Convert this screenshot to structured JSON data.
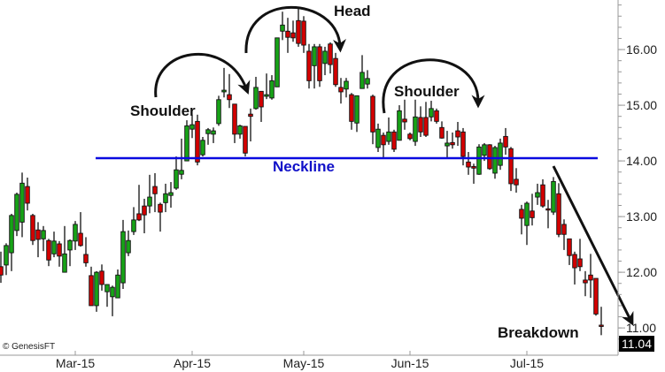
{
  "chart_data": {
    "type": "candlestick",
    "title": "",
    "xlabel": "",
    "ylabel": "",
    "ylim": [
      10.51,
      16.89
    ],
    "y_ticks": [
      "11.00",
      "12.00",
      "13.00",
      "14.00",
      "15.00",
      "16.00"
    ],
    "y_minor_step": 0.2,
    "x_ticks": [
      {
        "label": "Mar-15",
        "date": "2015-03-02"
      },
      {
        "label": "Apr-15",
        "date": "2015-04-01"
      },
      {
        "label": "May-15",
        "date": "2015-05-01"
      },
      {
        "label": "Jun-15",
        "date": "2015-06-01"
      },
      {
        "label": "Jul-15",
        "date": "2015-07-01"
      }
    ],
    "grid": false,
    "colors": {
      "up": "#17a317",
      "down": "#d40000",
      "neckline": "#0a0ae0",
      "wick": "#111111"
    },
    "neckline": {
      "label": "Neckline",
      "value": 14.05
    },
    "last_price": {
      "label": "11.04",
      "value": 11.04
    },
    "annotations": {
      "left_shoulder": "Shoulder",
      "head": "Head",
      "right_shoulder": "Shoulder",
      "breakdown": "Breakdown"
    },
    "watermark": "© GenesisFT",
    "candles_format": [
      "date",
      "open",
      "high",
      "low",
      "close"
    ],
    "candles": [
      [
        "2015-02-09",
        12.1,
        12.37,
        11.81,
        11.95
      ],
      [
        "2015-02-10",
        12.13,
        12.52,
        11.95,
        12.48
      ],
      [
        "2015-02-11",
        12.35,
        13.05,
        12.02,
        13.02
      ],
      [
        "2015-02-12",
        12.75,
        13.43,
        12.65,
        13.4
      ],
      [
        "2015-02-13",
        12.9,
        13.79,
        12.63,
        13.6
      ],
      [
        "2015-02-17",
        13.54,
        13.7,
        13.11,
        13.24
      ],
      [
        "2015-02-18",
        13.02,
        13.05,
        12.49,
        12.57
      ],
      [
        "2015-02-19",
        12.76,
        12.9,
        12.27,
        12.59
      ],
      [
        "2015-02-20",
        12.6,
        12.83,
        12.38,
        12.75
      ],
      [
        "2015-02-23",
        12.57,
        12.6,
        12.11,
        12.22
      ],
      [
        "2015-02-24",
        12.33,
        12.73,
        12.27,
        12.56
      ],
      [
        "2015-02-25",
        12.51,
        12.56,
        12.1,
        12.29
      ],
      [
        "2015-02-26",
        12.0,
        12.83,
        12.0,
        12.33
      ],
      [
        "2015-02-27",
        12.4,
        12.59,
        12.11,
        12.57
      ],
      [
        "2015-03-02",
        12.56,
        12.92,
        12.4,
        12.86
      ],
      [
        "2015-03-03",
        12.7,
        13.08,
        12.46,
        12.48
      ],
      [
        "2015-03-04",
        12.32,
        12.63,
        12.1,
        12.17
      ],
      [
        "2015-03-05",
        11.94,
        12.1,
        11.4,
        11.4
      ],
      [
        "2015-03-06",
        11.4,
        12.02,
        11.29,
        12.0
      ],
      [
        "2015-03-09",
        12.02,
        12.14,
        11.67,
        11.78
      ],
      [
        "2015-03-10",
        11.65,
        11.78,
        11.38,
        11.78
      ],
      [
        "2015-03-11",
        11.56,
        11.76,
        11.21,
        11.73
      ],
      [
        "2015-03-12",
        11.54,
        12.05,
        11.54,
        11.95
      ],
      [
        "2015-03-13",
        11.81,
        12.94,
        11.7,
        12.73
      ],
      [
        "2015-03-16",
        12.35,
        12.75,
        12.29,
        12.57
      ],
      [
        "2015-03-17",
        12.73,
        13.17,
        12.67,
        12.94
      ],
      [
        "2015-03-18",
        13.05,
        13.57,
        12.92,
        12.94
      ],
      [
        "2015-03-19",
        13.19,
        13.32,
        12.7,
        13.03
      ],
      [
        "2015-03-20",
        13.19,
        13.75,
        13.06,
        13.35
      ],
      [
        "2015-03-23",
        13.54,
        13.78,
        13.08,
        13.41
      ],
      [
        "2015-03-24",
        13.22,
        13.25,
        12.73,
        13.08
      ],
      [
        "2015-03-25",
        13.25,
        13.59,
        13.08,
        13.41
      ],
      [
        "2015-03-26",
        13.38,
        13.62,
        13.16,
        13.43
      ],
      [
        "2015-03-27",
        13.51,
        14.08,
        13.48,
        13.84
      ],
      [
        "2015-03-30",
        13.76,
        14.4,
        13.67,
        13.83
      ],
      [
        "2015-03-31",
        14.0,
        14.73,
        14.0,
        14.63
      ],
      [
        "2015-04-01",
        14.57,
        14.83,
        14.41,
        14.65
      ],
      [
        "2015-04-02",
        14.71,
        14.83,
        13.92,
        13.98
      ],
      [
        "2015-04-06",
        14.11,
        14.43,
        14.08,
        14.37
      ],
      [
        "2015-04-07",
        14.49,
        14.59,
        14.29,
        14.56
      ],
      [
        "2015-04-08",
        14.48,
        14.6,
        14.32,
        14.54
      ],
      [
        "2015-04-09",
        14.67,
        15.17,
        14.63,
        15.1
      ],
      [
        "2015-04-10",
        15.24,
        15.67,
        15.14,
        15.27
      ],
      [
        "2015-04-13",
        15.19,
        15.56,
        14.95,
        15.1
      ],
      [
        "2015-04-14",
        15.02,
        15.02,
        14.32,
        14.48
      ],
      [
        "2015-04-15",
        14.48,
        14.65,
        14.4,
        14.63
      ],
      [
        "2015-04-16",
        14.62,
        14.62,
        14.08,
        14.14
      ],
      [
        "2015-04-17",
        14.84,
        14.94,
        14.35,
        14.8
      ],
      [
        "2015-04-20",
        14.94,
        15.51,
        14.92,
        15.32
      ],
      [
        "2015-04-21",
        15.25,
        15.25,
        14.7,
        14.97
      ],
      [
        "2015-04-22",
        15.16,
        15.57,
        15.11,
        15.19
      ],
      [
        "2015-04-23",
        15.13,
        15.54,
        15.1,
        15.44
      ],
      [
        "2015-04-24",
        15.33,
        16.21,
        15.33,
        16.21
      ],
      [
        "2015-04-27",
        16.33,
        16.68,
        16.17,
        16.44
      ],
      [
        "2015-04-28",
        16.33,
        16.57,
        15.94,
        16.22
      ],
      [
        "2015-04-29",
        16.3,
        16.52,
        16.14,
        16.21
      ],
      [
        "2015-04-30",
        16.52,
        16.73,
        16.05,
        16.11
      ],
      [
        "2015-05-01",
        16.51,
        16.6,
        15.94,
        16.08
      ],
      [
        "2015-05-04",
        15.97,
        16.1,
        15.3,
        15.44
      ],
      [
        "2015-05-05",
        15.71,
        16.1,
        15.3,
        16.05
      ],
      [
        "2015-05-06",
        16.05,
        16.1,
        15.33,
        15.44
      ],
      [
        "2015-05-07",
        15.75,
        16.05,
        15.54,
        15.97
      ],
      [
        "2015-05-08",
        16.1,
        16.13,
        15.57,
        15.73
      ],
      [
        "2015-05-11",
        15.84,
        15.94,
        15.33,
        15.37
      ],
      [
        "2015-05-12",
        15.32,
        15.49,
        15.03,
        15.24
      ],
      [
        "2015-05-13",
        15.29,
        15.49,
        15.14,
        15.43
      ],
      [
        "2015-05-14",
        15.19,
        15.22,
        14.56,
        14.71
      ],
      [
        "2015-05-15",
        14.68,
        15.17,
        14.52,
        15.17
      ],
      [
        "2015-05-18",
        15.3,
        15.9,
        15.3,
        15.59
      ],
      [
        "2015-05-19",
        15.38,
        15.63,
        15.3,
        15.48
      ],
      [
        "2015-05-20",
        15.16,
        15.19,
        14.3,
        14.52
      ],
      [
        "2015-05-21",
        14.24,
        14.67,
        14.16,
        14.57
      ],
      [
        "2015-05-22",
        14.46,
        14.51,
        14.06,
        14.29
      ],
      [
        "2015-05-26",
        14.35,
        14.78,
        14.29,
        14.52
      ],
      [
        "2015-05-27",
        14.52,
        14.56,
        14.16,
        14.21
      ],
      [
        "2015-05-28",
        14.37,
        15.0,
        14.37,
        14.9
      ],
      [
        "2015-05-29",
        14.75,
        15.1,
        14.56,
        14.7
      ],
      [
        "2015-06-01",
        14.48,
        14.51,
        14.37,
        14.4
      ],
      [
        "2015-06-02",
        14.35,
        15.1,
        14.27,
        14.79
      ],
      [
        "2015-06-03",
        14.78,
        14.98,
        14.43,
        14.52
      ],
      [
        "2015-06-04",
        14.78,
        15.06,
        14.43,
        14.46
      ],
      [
        "2015-06-05",
        14.79,
        15.08,
        14.71,
        14.94
      ],
      [
        "2015-06-08",
        14.9,
        14.94,
        14.67,
        14.71
      ],
      [
        "2015-06-09",
        14.6,
        14.71,
        14.4,
        14.41
      ],
      [
        "2015-06-10",
        14.27,
        14.54,
        14.06,
        14.32
      ],
      [
        "2015-06-11",
        14.33,
        14.51,
        14.22,
        14.29
      ],
      [
        "2015-06-12",
        14.54,
        14.7,
        14.27,
        14.43
      ],
      [
        "2015-06-15",
        14.52,
        14.59,
        13.92,
        14.08
      ],
      [
        "2015-06-16",
        13.98,
        14.16,
        13.75,
        13.89
      ],
      [
        "2015-06-17",
        13.9,
        13.95,
        13.59,
        13.87
      ],
      [
        "2015-06-18",
        13.76,
        14.3,
        13.75,
        14.25
      ],
      [
        "2015-06-19",
        14.1,
        14.32,
        14.0,
        14.29
      ],
      [
        "2015-06-22",
        14.29,
        14.3,
        13.84,
        13.86
      ],
      [
        "2015-06-23",
        13.78,
        14.27,
        13.68,
        14.24
      ],
      [
        "2015-06-24",
        13.92,
        14.4,
        13.84,
        14.32
      ],
      [
        "2015-06-25",
        14.44,
        14.59,
        14.11,
        14.25
      ],
      [
        "2015-06-26",
        14.22,
        14.25,
        13.46,
        13.59
      ],
      [
        "2015-06-29",
        13.67,
        13.87,
        13.43,
        13.57
      ],
      [
        "2015-06-30",
        13.13,
        13.21,
        12.68,
        12.97
      ],
      [
        "2015-07-01",
        12.84,
        13.27,
        12.49,
        13.24
      ],
      [
        "2015-07-02",
        13.1,
        13.41,
        12.84,
        12.98
      ],
      [
        "2015-07-06",
        13.35,
        13.59,
        13.21,
        13.43
      ],
      [
        "2015-07-07",
        13.57,
        13.67,
        13.16,
        13.19
      ],
      [
        "2015-07-08",
        13.14,
        13.3,
        12.79,
        13.13
      ],
      [
        "2015-07-09",
        13.08,
        13.71,
        13.03,
        13.63
      ],
      [
        "2015-07-10",
        13.41,
        13.6,
        12.63,
        12.68
      ],
      [
        "2015-07-13",
        12.86,
        12.95,
        12.4,
        12.68
      ],
      [
        "2015-07-14",
        12.6,
        12.6,
        12.13,
        12.3
      ],
      [
        "2015-07-15",
        12.32,
        12.37,
        11.78,
        12.08
      ],
      [
        "2015-07-16",
        12.24,
        12.6,
        12.02,
        12.1
      ],
      [
        "2015-07-17",
        11.86,
        12.02,
        11.57,
        11.81
      ],
      [
        "2015-07-20",
        11.95,
        12.33,
        11.54,
        11.86
      ],
      [
        "2015-07-21",
        11.89,
        11.89,
        11.22,
        11.25
      ],
      [
        "2015-07-22",
        11.05,
        11.38,
        10.87,
        11.04
      ]
    ]
  }
}
